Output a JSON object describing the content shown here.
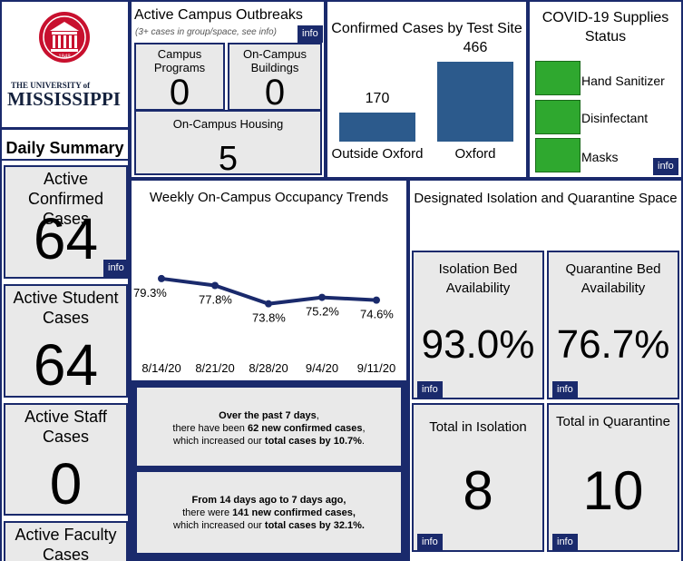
{
  "logo": {
    "university_prefix": "THE UNIVERSITY of",
    "name": "MISSISSIPPI",
    "seal_year": "1848"
  },
  "daily_summary": {
    "title": "Daily Summary"
  },
  "left_cards": [
    {
      "label": "Active Confirmed Cases",
      "value": "64",
      "info": "info"
    },
    {
      "label": "Active Student Cases",
      "value": "64"
    },
    {
      "label": "Active Staff Cases",
      "value": "0"
    },
    {
      "label": "Active Faculty Cases",
      "value": ""
    }
  ],
  "outbreaks": {
    "title": "Active Campus Outbreaks",
    "subtitle": "(3+ cases in group/space, see info)",
    "info": "info",
    "programs_label": "Campus Programs",
    "programs_value": "0",
    "buildings_label": "On-Campus Buildings",
    "buildings_value": "0",
    "housing_label": "On-Campus Housing",
    "housing_value": "5"
  },
  "test_sites": {
    "title": "Confirmed Cases by Test Site",
    "categories": [
      "Outside Oxford",
      "Oxford"
    ],
    "values": [
      170,
      466
    ],
    "value_labels": [
      "170",
      "466"
    ]
  },
  "supplies": {
    "title": "COVID-19 Supplies Status",
    "items": [
      "Hand Sanitizer",
      "Disinfectant",
      "Masks"
    ],
    "status_color": "#2fa82f",
    "info": "info"
  },
  "occupancy": {
    "title": "Weekly On-Campus Occupancy Trends"
  },
  "summary_text": {
    "p1_a": "Over the past 7 days",
    "p1_b": ",",
    "p1_c": "there have been ",
    "p1_d": "62 new confirmed cases",
    "p1_e": ",",
    "p1_f": "which increased our ",
    "p1_g": "total cases by 10.7%",
    "p1_h": ".",
    "p2_a": "From 14 days ago to 7 days ago,",
    "p2_b": "there were ",
    "p2_c": "141 new confirmed cases,",
    "p2_d": "which increased our ",
    "p2_e": "total cases by 32.1%."
  },
  "isolation": {
    "title": "Designated Isolation and Quarantine Space",
    "isolation_bed_label": "Isolation Bed Availability",
    "isolation_bed_value": "93.0%",
    "quarantine_bed_label": "Quarantine Bed Availability",
    "quarantine_bed_value": "76.7%",
    "in_isolation_label": "Total in Isolation",
    "in_isolation_value": "8",
    "in_quarantine_label": "Total in Quarantine",
    "in_quarantine_value": "10",
    "info": "info"
  },
  "chart_data": [
    {
      "type": "line",
      "title": "Weekly On-Campus Occupancy Trends",
      "categories": [
        "8/14/20",
        "8/21/20",
        "8/28/20",
        "9/4/20",
        "9/11/20"
      ],
      "values": [
        79.3,
        77.8,
        73.8,
        75.2,
        74.6
      ],
      "value_labels": [
        "79.3%",
        "77.8%",
        "73.8%",
        "75.2%",
        "74.6%"
      ],
      "series_color": "#1a2a6c",
      "ylim": [
        65,
        85
      ]
    },
    {
      "type": "bar",
      "title": "Confirmed Cases by Test Site",
      "categories": [
        "Outside Oxford",
        "Oxford"
      ],
      "values": [
        170,
        466
      ],
      "bar_color": "#2c5a8c",
      "ylim": [
        0,
        500
      ]
    }
  ]
}
